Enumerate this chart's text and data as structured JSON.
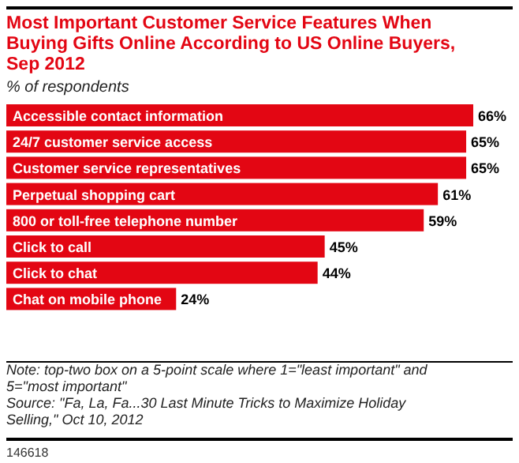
{
  "chart_data": {
    "type": "bar",
    "orientation": "horizontal",
    "title": "Most Important Customer Service Features When Buying Gifts Online According to US Online Buyers, Sep 2012",
    "subtitle": "% of respondents",
    "categories": [
      "Accessible contact information",
      "24/7 customer service access",
      "Customer service representatives",
      "Perpetual shopping cart",
      "800 or toll-free telephone number",
      "Click to call",
      "Click to chat",
      "Chat on mobile phone"
    ],
    "values": [
      66,
      65,
      65,
      61,
      59,
      45,
      44,
      24
    ],
    "value_labels": [
      "66%",
      "65%",
      "65%",
      "61%",
      "59%",
      "45%",
      "44%",
      "24%"
    ],
    "color": "#e30613",
    "annotations": [
      "Note: top-two box on a 5-point scale where 1=\"least important\" and 5=\"most important\"",
      "Source: \"Fa, La, Fa...30 Last Minute Tricks to Maximize Holiday Selling,\" Oct 10, 2012",
      "146618"
    ]
  }
}
